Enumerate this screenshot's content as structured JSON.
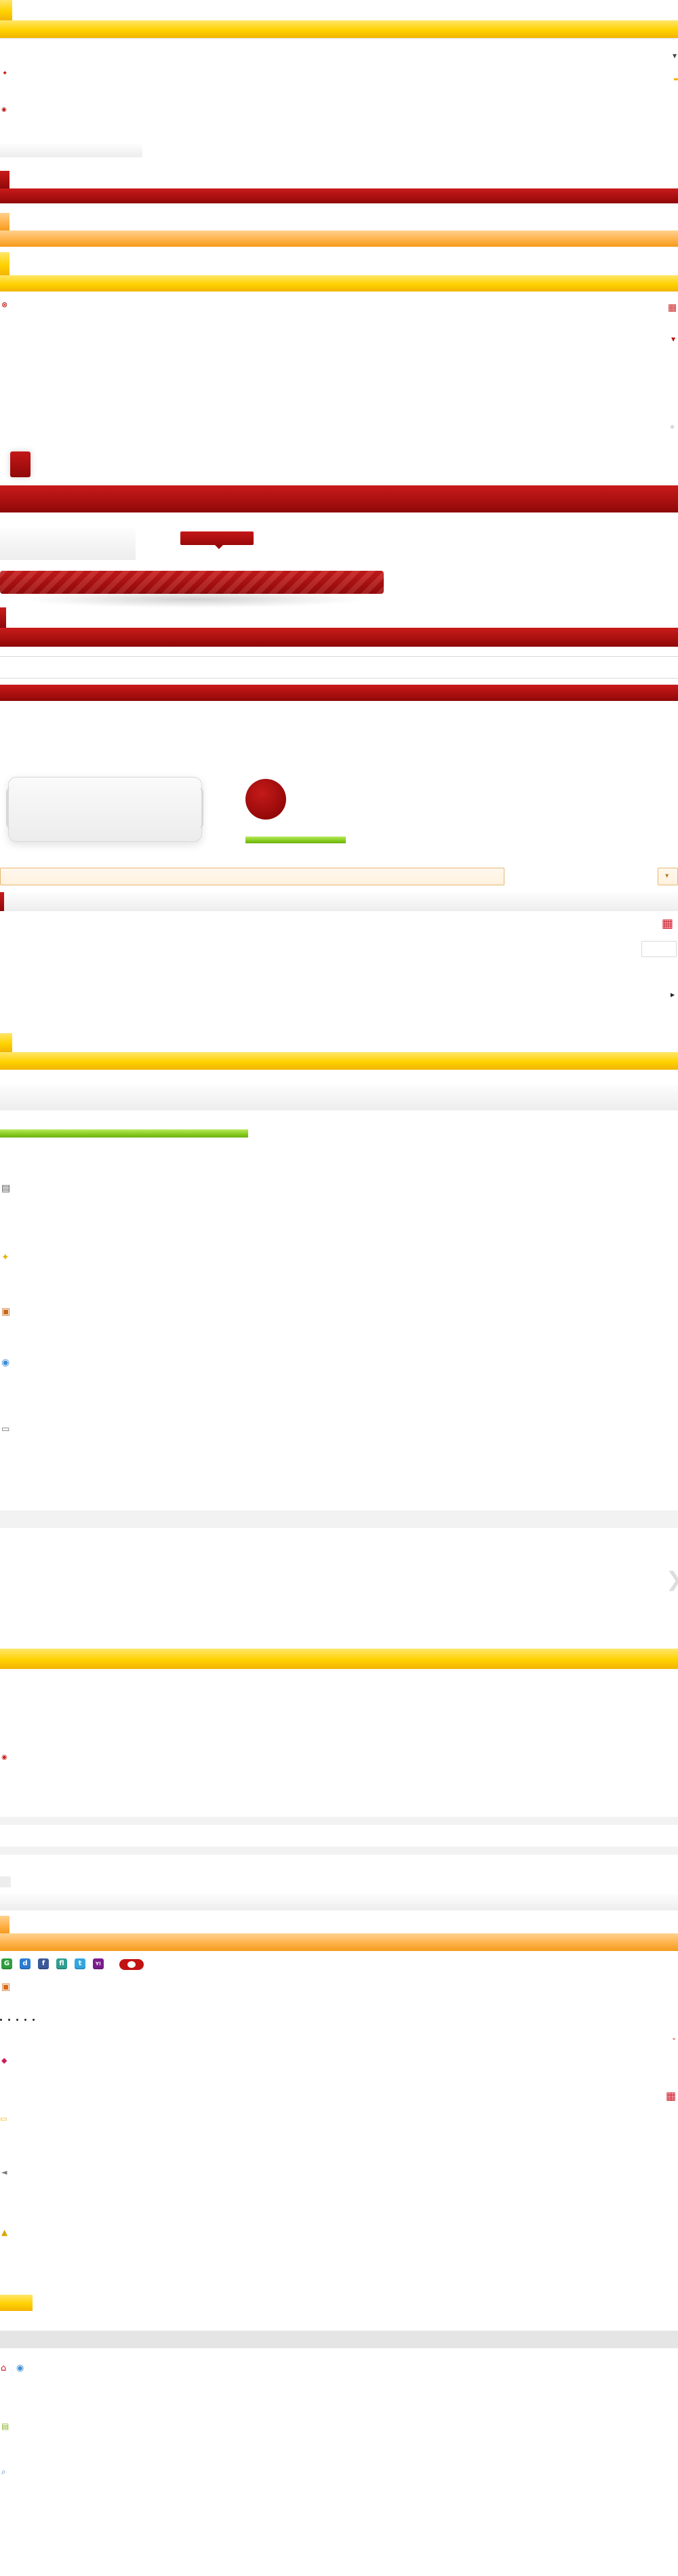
{
  "colors": {
    "yellow": "#ffd200",
    "orange": "#ffb24a",
    "red": "#a80f0f",
    "green": "#86cb1c",
    "gray": "#ededed"
  },
  "icons": {
    "social": [
      {
        "name": "google-maps-icon",
        "text": "G"
      },
      {
        "name": "delicious-icon",
        "text": "d"
      },
      {
        "name": "facebook-icon",
        "text": "f"
      },
      {
        "name": "flickr-icon",
        "text": "fl"
      },
      {
        "name": "twitter-icon",
        "text": "t"
      },
      {
        "name": "yahoo-icon",
        "text": "Y!"
      }
    ]
  },
  "texts": {
    "chevron_right": "❯"
  }
}
